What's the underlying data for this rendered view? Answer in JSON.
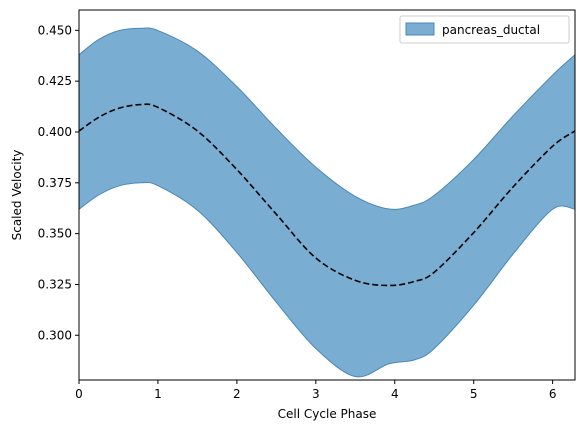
{
  "chart_data": {
    "type": "area",
    "title": "",
    "xlabel": "Cell Cycle Phase",
    "ylabel": "Scaled Velocity",
    "xlim": [
      0,
      6.2832
    ],
    "ylim": [
      0.278,
      0.46
    ],
    "x_ticks": [
      0,
      1,
      2,
      3,
      4,
      5,
      6
    ],
    "y_ticks": [
      0.3,
      0.325,
      0.35,
      0.375,
      0.4,
      0.425,
      0.45
    ],
    "y_tick_labels": [
      "0.300",
      "0.325",
      "0.350",
      "0.375",
      "0.400",
      "0.425",
      "0.450"
    ],
    "grid": false,
    "legend_position": "top-right",
    "band": {
      "name": "pancreas_ductal",
      "color": "#5b9bc8",
      "edge_color": "#4a87b8",
      "x": [
        0,
        0.25,
        0.5,
        0.785,
        1.0,
        1.5,
        2.0,
        2.5,
        3.0,
        3.5,
        3.927,
        4.25,
        4.5,
        5.0,
        5.5,
        6.0,
        6.2832
      ],
      "upper": [
        0.438,
        0.4455,
        0.4498,
        0.451,
        0.4499,
        0.4398,
        0.4223,
        0.4017,
        0.3827,
        0.3683,
        0.3621,
        0.364,
        0.3688,
        0.3865,
        0.408,
        0.428,
        0.438
      ],
      "lower": [
        0.362,
        0.369,
        0.3734,
        0.375,
        0.3736,
        0.3615,
        0.3407,
        0.3162,
        0.2935,
        0.2797,
        0.286,
        0.2879,
        0.2935,
        0.3148,
        0.34,
        0.362,
        0.362
      ]
    },
    "mean_line": {
      "style": "dashed",
      "color": "#000000",
      "x": [
        0,
        0.25,
        0.5,
        0.785,
        1.0,
        1.5,
        2.0,
        2.5,
        3.0,
        3.5,
        3.927,
        4.25,
        4.5,
        5.0,
        5.5,
        6.0,
        6.2832
      ],
      "y": [
        0.4005,
        0.4072,
        0.4116,
        0.4135,
        0.4121,
        0.4005,
        0.3815,
        0.3595,
        0.338,
        0.327,
        0.3245,
        0.3265,
        0.331,
        0.3505,
        0.373,
        0.393,
        0.4005
      ]
    }
  }
}
